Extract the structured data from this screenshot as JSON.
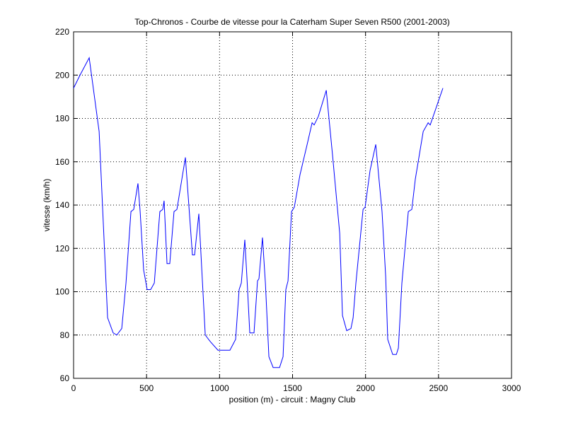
{
  "chart_data": {
    "type": "line",
    "title": "Top-Chronos - Courbe de vitesse pour la Caterham Super Seven R500 (2001-2003)",
    "xlabel": "position (m) - circuit : Magny Club",
    "ylabel": "vitesse (km/h)",
    "xlim": [
      0,
      3000
    ],
    "xticks": [
      0,
      500,
      1000,
      1500,
      2000,
      2500,
      3000
    ],
    "ylim": [
      60,
      220
    ],
    "yticks": [
      60,
      80,
      100,
      120,
      140,
      160,
      180,
      200,
      220
    ],
    "grid": true,
    "series": [
      {
        "color": "#0000ff",
        "x": [
          0,
          44,
          107,
          175,
          233,
          271,
          296,
          330,
          359,
          393,
          412,
          441,
          456,
          480,
          504,
          528,
          553,
          591,
          611,
          620,
          640,
          659,
          688,
          708,
          766,
          814,
          829,
          858,
          902,
          936,
          989,
          1071,
          1110,
          1134,
          1149,
          1173,
          1188,
          1207,
          1236,
          1260,
          1270,
          1294,
          1314,
          1338,
          1367,
          1411,
          1435,
          1454,
          1469,
          1493,
          1512,
          1551,
          1600,
          1634,
          1648,
          1677,
          1731,
          1774,
          1823,
          1842,
          1871,
          1900,
          1915,
          1934,
          1983,
          1997,
          2031,
          2070,
          2113,
          2138,
          2152,
          2186,
          2211,
          2225,
          2249,
          2293,
          2317,
          2341,
          2395,
          2429,
          2443,
          2530
        ],
        "values": [
          194,
          200,
          208,
          174,
          88,
          81,
          80,
          83,
          104,
          137,
          138,
          150,
          137,
          110,
          101,
          101,
          104,
          137,
          138,
          142,
          113,
          113,
          137,
          138,
          162,
          117,
          117,
          136,
          80,
          77,
          73,
          73,
          78,
          101,
          104,
          124,
          106,
          81,
          81,
          105,
          106,
          125,
          104,
          70,
          65,
          65,
          70,
          101,
          105,
          137,
          139,
          154,
          168,
          178,
          177,
          181,
          193,
          163,
          127,
          89,
          82,
          83,
          88,
          104,
          138,
          139,
          156,
          168,
          137,
          107,
          78,
          71,
          71,
          74,
          104,
          137,
          138,
          152,
          174,
          178,
          177,
          194
        ]
      }
    ]
  }
}
